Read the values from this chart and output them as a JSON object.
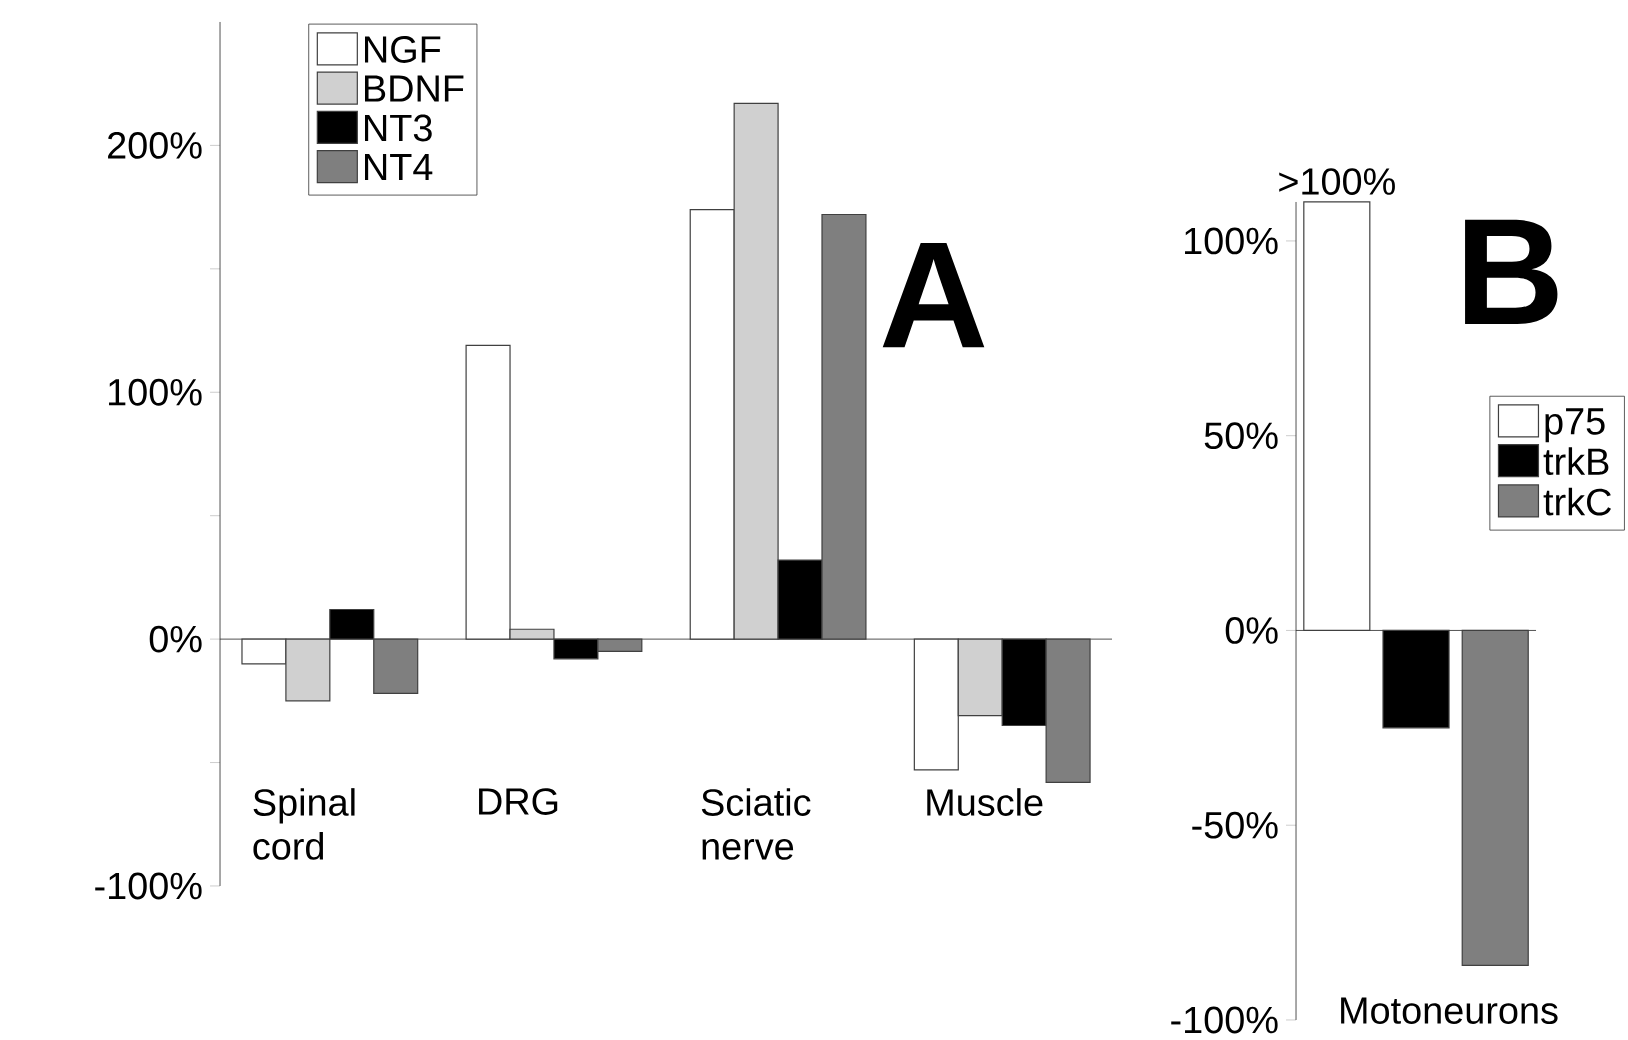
{
  "chart_data": [
    {
      "type": "bar",
      "title": "A",
      "categories": [
        "Spinal cord",
        "DRG",
        "Sciatic nerve",
        "Muscle"
      ],
      "series": [
        {
          "name": "NGF",
          "color": "#ffffff",
          "values": [
            -10,
            119,
            174,
            -53
          ]
        },
        {
          "name": "BDNF",
          "color": "#d0d0d0",
          "values": [
            -25,
            4,
            217,
            -31
          ]
        },
        {
          "name": "NT3",
          "color": "#000000",
          "values": [
            12,
            -8,
            32,
            -35
          ]
        },
        {
          "name": "NT4",
          "color": "#7f7f7f",
          "values": [
            -22,
            -5,
            172,
            -58
          ]
        }
      ],
      "ylim": [
        -100,
        250
      ],
      "yticks": [
        {
          "value": -100,
          "label": "-100%"
        },
        {
          "value": -50,
          "label": null
        },
        {
          "value": 0,
          "label": "0%"
        },
        {
          "value": 50,
          "label": null
        },
        {
          "value": 100,
          "label": "100%"
        },
        {
          "value": 150,
          "label": null
        },
        {
          "value": 200,
          "label": "200%"
        }
      ],
      "legend": "top left"
    },
    {
      "type": "bar",
      "title": "B",
      "categories": [
        "Motoneurons"
      ],
      "series": [
        {
          "name": "p75",
          "color": "#ffffff",
          "values": [
            110
          ]
        },
        {
          "name": "trkB",
          "color": "#000000",
          "values": [
            -25
          ]
        },
        {
          "name": "trkC",
          "color": "#7f7f7f",
          "values": [
            -86
          ]
        }
      ],
      "ylim": [
        -100,
        110
      ],
      "yticks": [
        {
          "value": -100,
          "label": "-100%"
        },
        {
          "value": -50,
          "label": "-50%"
        },
        {
          "value": 0,
          "label": "0%"
        },
        {
          "value": 50,
          "label": "50%"
        },
        {
          "value": 100,
          "label": "100%"
        }
      ],
      "annotations": [
        ">100%"
      ],
      "legend": "right"
    }
  ]
}
